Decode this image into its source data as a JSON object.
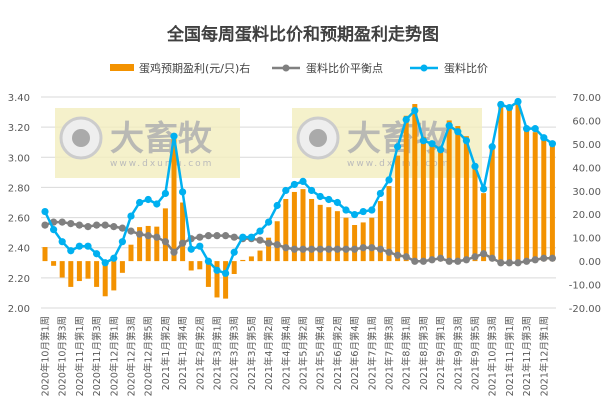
{
  "chart_data": {
    "type": "bar+line",
    "title": "全国每周蛋料比价和预期盈利走势图",
    "watermark": {
      "brand": "大畜牧",
      "url": "www.dxumu.com"
    },
    "tick_labels": [
      "2020年10月第1周",
      "2020年10月第3周",
      "2020年11月第1周",
      "2020年11月第3周",
      "2020年12月第1周",
      "2020年12月第3周",
      "2020年12月第5周",
      "2021年1月第2周",
      "2021年1月第4周",
      "2021年2月第2周",
      "2021年3月第1周",
      "2021年3月第3周",
      "2021年3月第5周",
      "2021年4月第2周",
      "2021年4月第4周",
      "2021年5月第2周",
      "2021年5月第4周",
      "2021年6月第2周",
      "2021年6月第4周",
      "2021年7月第1周",
      "2021年7月第3周",
      "2021年8月第1周",
      "2021年8月第3周",
      "2021年9月第1周",
      "2021年9月第3周",
      "2021年9月第5周",
      "2021年10月第3周",
      "2021年11月第1周",
      "2021年11月第3周",
      "2021年12月第1周"
    ],
    "left_axis": {
      "ylim": [
        2.0,
        3.4
      ],
      "ticks": [
        "2.00",
        "2.20",
        "2.40",
        "2.60",
        "2.80",
        "3.00",
        "3.20",
        "3.40"
      ]
    },
    "right_axis": {
      "ylim": [
        -20,
        70
      ],
      "ticks": [
        "-20.00",
        "-10.00",
        "0.00",
        "10.00",
        "20.00",
        "30.00",
        "40.00",
        "50.00",
        "60.00",
        "70.00"
      ]
    },
    "grid": true,
    "legend_position": "top",
    "series": [
      {
        "name": "蛋鸡预期盈利(元/只)右",
        "type": "bar",
        "axis": "right",
        "color": "#F39200",
        "values": [
          6,
          -2,
          -7,
          -11,
          -8.5,
          -7.5,
          -11,
          -15,
          -12.5,
          -5,
          7,
          14.5,
          15,
          14.7,
          22.5,
          52,
          25,
          -4,
          -3.5,
          -11,
          -15.5,
          -16,
          -5.5,
          0.5,
          2,
          4.5,
          10,
          17,
          26.5,
          29.5,
          30.7,
          26.5,
          24,
          23,
          21.3,
          18.5,
          15.4,
          16.5,
          18.5,
          25.6,
          32,
          45,
          62,
          67,
          53,
          50,
          48.8,
          60,
          57.6,
          53.3,
          39.5,
          29,
          48.8,
          68,
          66.5,
          67,
          56,
          55,
          51.6,
          49.5
        ]
      },
      {
        "name": "蛋料比价平衡点",
        "type": "line",
        "axis": "left",
        "color": "#808080",
        "values": [
          2.55,
          2.57,
          2.57,
          2.56,
          2.55,
          2.54,
          2.55,
          2.55,
          2.54,
          2.53,
          2.51,
          2.49,
          2.48,
          2.47,
          2.44,
          2.37,
          2.43,
          2.46,
          2.47,
          2.48,
          2.48,
          2.48,
          2.47,
          2.46,
          2.46,
          2.45,
          2.43,
          2.42,
          2.4,
          2.39,
          2.39,
          2.39,
          2.39,
          2.39,
          2.39,
          2.39,
          2.39,
          2.4,
          2.4,
          2.39,
          2.37,
          2.35,
          2.34,
          2.31,
          2.31,
          2.32,
          2.33,
          2.31,
          2.31,
          2.32,
          2.34,
          2.36,
          2.33,
          2.3,
          2.3,
          2.3,
          2.31,
          2.32,
          2.33,
          2.33
        ]
      },
      {
        "name": "蛋料比价",
        "type": "line",
        "axis": "left",
        "color": "#00B0F0",
        "values": [
          2.64,
          2.52,
          2.44,
          2.38,
          2.41,
          2.41,
          2.36,
          2.3,
          2.33,
          2.44,
          2.61,
          2.7,
          2.72,
          2.69,
          2.76,
          3.14,
          2.77,
          2.39,
          2.41,
          2.31,
          2.25,
          2.23,
          2.37,
          2.47,
          2.47,
          2.51,
          2.57,
          2.68,
          2.78,
          2.82,
          2.84,
          2.78,
          2.74,
          2.72,
          2.7,
          2.65,
          2.62,
          2.64,
          2.65,
          2.76,
          2.85,
          3.07,
          3.25,
          3.31,
          3.11,
          3.09,
          3.05,
          3.21,
          3.17,
          3.11,
          2.94,
          2.79,
          3.07,
          3.35,
          3.33,
          3.37,
          3.19,
          3.19,
          3.13,
          3.09
        ]
      }
    ]
  }
}
